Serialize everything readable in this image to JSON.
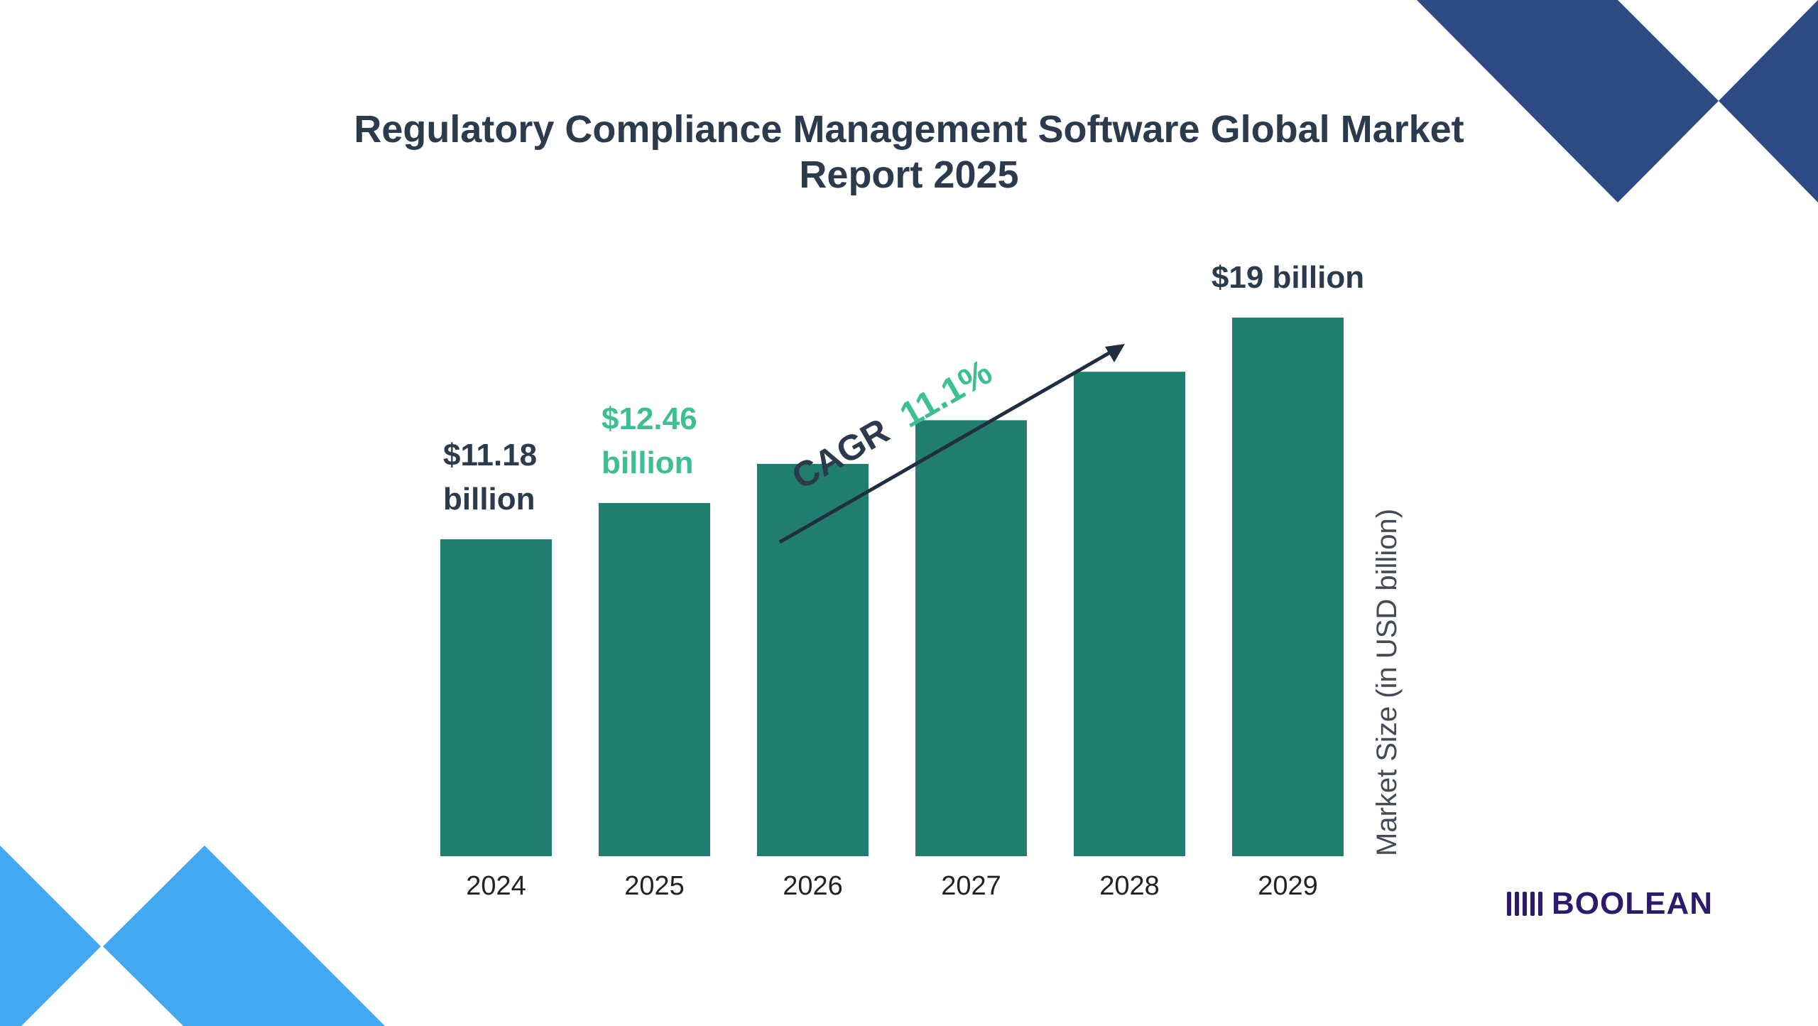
{
  "title_lines": [
    "Regulatory Compliance Management Software Global Market",
    "Report 2025"
  ],
  "brand": {
    "name": "BOOLEAN",
    "icon": "bars-logo-icon",
    "color": "#2d1a6e"
  },
  "colors": {
    "bar": "#217d6d",
    "highlight": "#3dbf8f",
    "dark_text": "#2b3a4d",
    "decor_navy": "#2d4a85",
    "decor_blue": "#42a8f0"
  },
  "cagr": {
    "label": "CAGR",
    "value": "11.1%"
  },
  "chart_data": {
    "type": "bar",
    "title": "Regulatory Compliance Management Software Global Market Report 2025",
    "categories": [
      "2024",
      "2025",
      "2026",
      "2027",
      "2028",
      "2029"
    ],
    "values": [
      11.18,
      12.46,
      13.84,
      15.38,
      17.09,
      19.0
    ],
    "ylabel": "Market Size (in USD billion)",
    "xlabel": "",
    "grid": false,
    "data_labels": [
      {
        "index": 0,
        "lines": [
          "$11.18",
          "billion"
        ],
        "color": "#2b3a4d"
      },
      {
        "index": 1,
        "lines": [
          "$12.46",
          "billion"
        ],
        "color": "#3dbf8f"
      },
      {
        "index": 5,
        "lines": [
          "$19 billion"
        ],
        "color": "#2b3a4d"
      }
    ]
  }
}
